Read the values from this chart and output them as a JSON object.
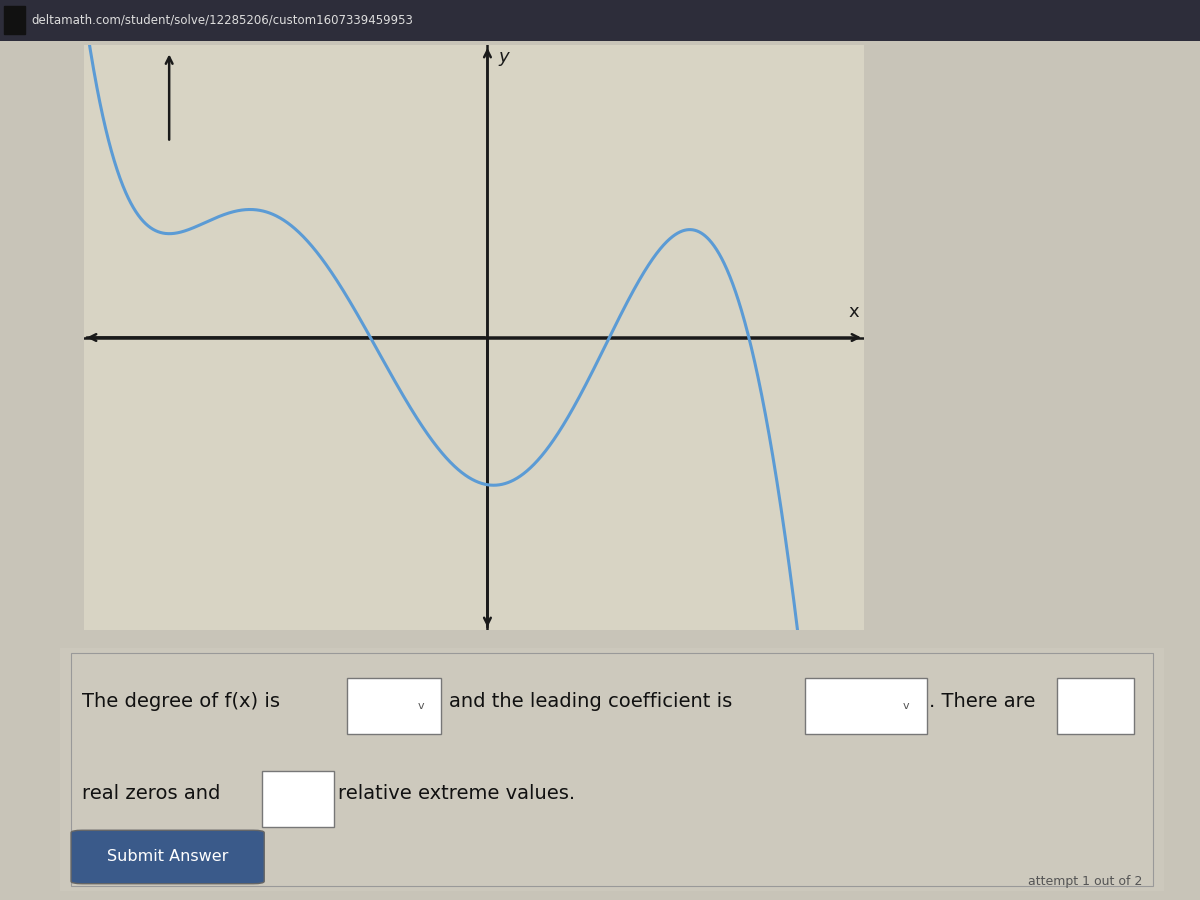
{
  "bg_color": "#c8c4b8",
  "graph_bg": "#d8d4c4",
  "curve_color": "#5b9bd5",
  "axis_color": "#1a1a1a",
  "curve_linewidth": 2.2,
  "axis_linewidth": 1.8,
  "fig_width": 12.0,
  "fig_height": 9.0,
  "title_text": "deltamath.com/student/solve/12285206/custom1607339459953",
  "xlabel": "x",
  "ylabel": "y",
  "submit_text": "Submit Answer",
  "attempt_text": "attempt 1 out of 2",
  "form_bg": "#c8c4b8"
}
